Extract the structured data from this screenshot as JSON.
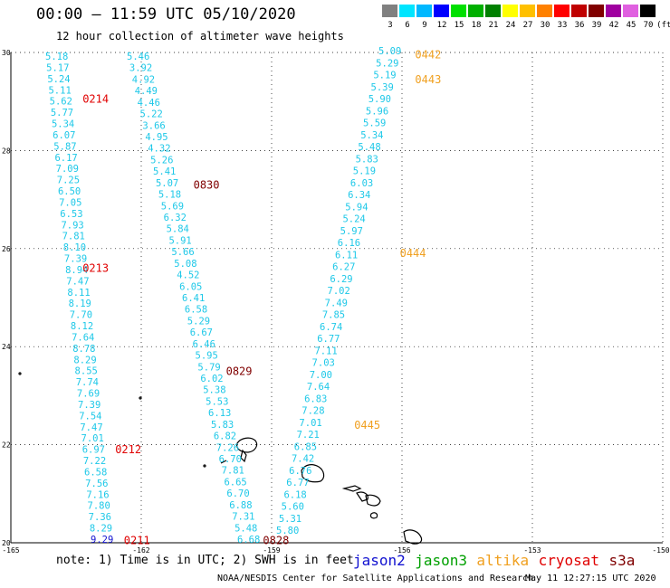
{
  "title": "00:00 – 11:59 UTC 05/10/2020",
  "subtitle": "12 hour collection of altimeter wave heights",
  "colorbar": {
    "unit": "(ft)",
    "entries": [
      {
        "label": "3",
        "color": "#808080"
      },
      {
        "label": "6",
        "color": "#00e5ff"
      },
      {
        "label": "9",
        "color": "#00b8ff"
      },
      {
        "label": "12",
        "color": "#0000ff"
      },
      {
        "label": "15",
        "color": "#00e000"
      },
      {
        "label": "18",
        "color": "#00b000"
      },
      {
        "label": "21",
        "color": "#008000"
      },
      {
        "label": "24",
        "color": "#ffff00"
      },
      {
        "label": "27",
        "color": "#ffc000"
      },
      {
        "label": "30",
        "color": "#ff8000"
      },
      {
        "label": "33",
        "color": "#ff0000"
      },
      {
        "label": "36",
        "color": "#c00000"
      },
      {
        "label": "39",
        "color": "#800000"
      },
      {
        "label": "42",
        "color": "#a000a0"
      },
      {
        "label": "45",
        "color": "#e060e0"
      },
      {
        "label": "70",
        "color": "#000000"
      }
    ]
  },
  "axes": {
    "lon_ticks": [
      "-165",
      "-162",
      "-159",
      "-156",
      "-153",
      "-150"
    ],
    "lat_ticks": [
      "30",
      "28",
      "26",
      "24",
      "22",
      "20"
    ],
    "lon_range": [
      -165,
      -150
    ],
    "lat_range": [
      20,
      30
    ]
  },
  "colors": {
    "cyan": "#1ec8e8",
    "blue": "#1010d0",
    "red": "#e00000",
    "darkred": "#800000",
    "orange": "#f0a020",
    "grid": "#000000"
  },
  "tracks": [
    {
      "id": "t1",
      "color": "cyan",
      "x0": 50,
      "x1": 100,
      "y0": 62,
      "y1": 596,
      "values": [
        "5.18",
        "5.17",
        "5.24",
        "5.11",
        "5.62",
        "5.77",
        "5.34",
        "6.07",
        "5.87",
        "6.17",
        "7.09",
        "7.25",
        "6.50",
        "7.05",
        "6.53",
        "7.93",
        "7.81",
        "8.10",
        "7.39",
        "8.94",
        "7.47",
        "8.11",
        "8.19",
        "7.70",
        "8.12",
        "7.64",
        "8.78",
        "8.29",
        "8.55",
        "7.74",
        "7.69",
        "7.39",
        "7.54",
        "7.47",
        "7.01",
        "6.97",
        "7.22",
        "6.58",
        "7.56",
        "7.16",
        "7.80",
        "7.36",
        "8.29",
        "9.29"
      ],
      "value_colors": {
        "43": "blue"
      }
    },
    {
      "id": "t2",
      "color": "cyan",
      "x0": 140,
      "x1": 262,
      "y0": 62,
      "y1": 596,
      "values": [
        "5.46",
        "3.92",
        "4.92",
        "4.49",
        "4.46",
        "5.22",
        "3.66",
        "4.95",
        "4.32",
        "5.26",
        "5.41",
        "5.07",
        "5.18",
        "5.69",
        "6.32",
        "5.84",
        "5.91",
        "5.66",
        "5.08",
        "4.52",
        "6.05",
        "6.41",
        "6.58",
        "5.29",
        "6.67",
        "6.46",
        "5.95",
        "5.79",
        "6.02",
        "5.38",
        "5.53",
        "6.13",
        "5.83",
        "6.82",
        "7.26",
        "6.70",
        "7.81",
        "6.65",
        "6.70",
        "6.88",
        "7.31",
        "5.48",
        "6.68"
      ]
    },
    {
      "id": "t3",
      "color": "cyan",
      "x0": 418,
      "x1": 305,
      "y0": 56,
      "y1": 586,
      "values": [
        "5.09",
        "5.29",
        "5.19",
        "5.39",
        "5.90",
        "5.96",
        "5.59",
        "5.34",
        "5.48",
        "5.83",
        "5.19",
        "6.03",
        "6.34",
        "5.94",
        "5.24",
        "5.97",
        "6.16",
        "6.11",
        "6.27",
        "6.29",
        "7.02",
        "7.49",
        "7.85",
        "6.74",
        "6.77",
        "7.11",
        "7.03",
        "7.00",
        "7.64",
        "6.83",
        "7.28",
        "7.01",
        "7.21",
        "6.85",
        "7.42",
        "6.76",
        "6.77",
        "6.18",
        "5.60",
        "5.31",
        "5.80"
      ]
    }
  ],
  "time_labels": [
    {
      "text": "0214",
      "lon": -163.35,
      "lat": 29.05,
      "color": "red"
    },
    {
      "text": "0213",
      "lon": -163.35,
      "lat": 25.6,
      "color": "red"
    },
    {
      "text": "0212",
      "lon": -162.6,
      "lat": 21.9,
      "color": "red"
    },
    {
      "text": "0211",
      "lon": -162.4,
      "lat": 20.05,
      "color": "red"
    },
    {
      "text": "0830",
      "lon": -160.8,
      "lat": 27.3,
      "color": "darkred"
    },
    {
      "text": "0829",
      "lon": -160.05,
      "lat": 23.5,
      "color": "darkred"
    },
    {
      "text": "0828",
      "lon": -159.2,
      "lat": 20.05,
      "color": "darkred"
    },
    {
      "text": "0442",
      "lon": -155.7,
      "lat": 29.95,
      "color": "orange"
    },
    {
      "text": "0443",
      "lon": -155.7,
      "lat": 29.45,
      "color": "orange"
    },
    {
      "text": "0444",
      "lon": -156.05,
      "lat": 25.9,
      "color": "orange"
    },
    {
      "text": "0445",
      "lon": -157.1,
      "lat": 22.4,
      "color": "orange"
    }
  ],
  "note": "note: 1) Time is in UTC; 2) SWH is in feet",
  "satellites": [
    {
      "name": "jason2",
      "color": "#1010d0"
    },
    {
      "name": "jason3",
      "color": "#00a000"
    },
    {
      "name": "altika",
      "color": "#f0a020"
    },
    {
      "name": "cryosat",
      "color": "#e00000"
    },
    {
      "name": "s3a",
      "color": "#800000"
    }
  ],
  "credit": "NOAA/NESDIS Center for Satellite Applications and Research",
  "timestamp": "May 11 12:27:15 UTC 2020"
}
